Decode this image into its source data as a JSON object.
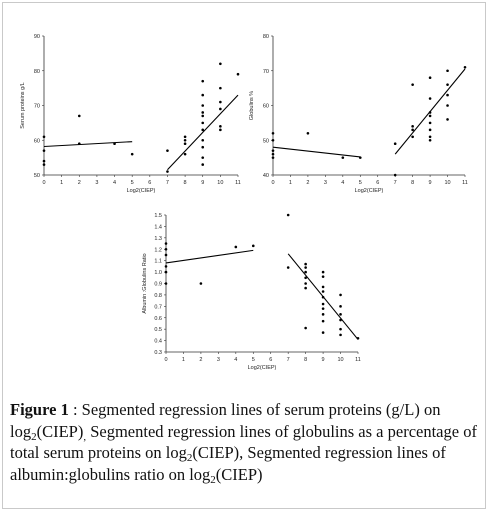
{
  "figure": {
    "label": "Figure 1",
    "caption_parts": {
      "p1": "  : Segmented regression lines of serum proteins (g/L) on log",
      "sub1": "2",
      "p2": "(CIEP)",
      "sub2": ",",
      "p3": " Segmented regression lines of globulins as a percentage of total serum proteins on log",
      "sub3": "2",
      "p4": "(CIEP), Segmented regression lines of albumin:globulins ratio on log",
      "sub4": "2",
      "p5": "(CIEP)"
    }
  },
  "chart_data": [
    {
      "type": "scatter",
      "ylabel": "Serum proteins  g/L",
      "xlabel": "Log2(CIEP)",
      "xlim": [
        0,
        11
      ],
      "ylim": [
        50,
        90
      ],
      "x_ticks": [
        "0",
        "1",
        "2",
        "3",
        "4",
        "5",
        "6",
        "7",
        "8",
        "9",
        "10",
        "11"
      ],
      "y_ticks": [
        "50",
        "60",
        "70",
        "80",
        "90"
      ],
      "points": [
        [
          0,
          61
        ],
        [
          0,
          57
        ],
        [
          0,
          54
        ],
        [
          0,
          53
        ],
        [
          2,
          67
        ],
        [
          2,
          59
        ],
        [
          4,
          59
        ],
        [
          5,
          56
        ],
        [
          7,
          51
        ],
        [
          7,
          57
        ],
        [
          8,
          60
        ],
        [
          8,
          61
        ],
        [
          8,
          59
        ],
        [
          8,
          56
        ],
        [
          9,
          77
        ],
        [
          9,
          73
        ],
        [
          9,
          70
        ],
        [
          9,
          68
        ],
        [
          9,
          67
        ],
        [
          9,
          65
        ],
        [
          9,
          63
        ],
        [
          9,
          60
        ],
        [
          9,
          58
        ],
        [
          9,
          55
        ],
        [
          9,
          53
        ],
        [
          10,
          82
        ],
        [
          10,
          75
        ],
        [
          10,
          71
        ],
        [
          10,
          69
        ],
        [
          10,
          64
        ],
        [
          10,
          63
        ],
        [
          11,
          79
        ]
      ],
      "segments": [
        [
          [
            0,
            58.2
          ],
          [
            5,
            59.6
          ]
        ],
        [
          [
            7,
            51.5
          ],
          [
            11,
            73
          ]
        ]
      ]
    },
    {
      "type": "scatter",
      "ylabel": "Globulins %",
      "xlabel": "Log2(CIEP)",
      "xlim": [
        0,
        11
      ],
      "ylim": [
        40,
        80
      ],
      "x_ticks": [
        "0",
        "1",
        "2",
        "3",
        "4",
        "5",
        "6",
        "7",
        "8",
        "9",
        "10",
        "11"
      ],
      "y_ticks": [
        "40",
        "50",
        "60",
        "70",
        "80"
      ],
      "points": [
        [
          0,
          52
        ],
        [
          0,
          50
        ],
        [
          0,
          47
        ],
        [
          0,
          46
        ],
        [
          0,
          45
        ],
        [
          2,
          52
        ],
        [
          4,
          45
        ],
        [
          5,
          45
        ],
        [
          7,
          40
        ],
        [
          7,
          49
        ],
        [
          8,
          66
        ],
        [
          8,
          54
        ],
        [
          8,
          53
        ],
        [
          8,
          51
        ],
        [
          9,
          68
        ],
        [
          9,
          62
        ],
        [
          9,
          58
        ],
        [
          9,
          57
        ],
        [
          9,
          55
        ],
        [
          9,
          53
        ],
        [
          9,
          51
        ],
        [
          9,
          50
        ],
        [
          10,
          70
        ],
        [
          10,
          66
        ],
        [
          10,
          63
        ],
        [
          10,
          60
        ],
        [
          10,
          56
        ],
        [
          11,
          71
        ]
      ],
      "segments": [
        [
          [
            0,
            48
          ],
          [
            5,
            45.2
          ]
        ],
        [
          [
            7,
            46
          ],
          [
            11,
            70.5
          ]
        ]
      ]
    },
    {
      "type": "scatter",
      "ylabel": "Albumin :Globulins Ratio",
      "xlabel": "Log2(CIEP)",
      "xlim": [
        0,
        11
      ],
      "ylim": [
        0.3,
        1.5
      ],
      "x_ticks": [
        "0",
        "1",
        "2",
        "3",
        "4",
        "5",
        "6",
        "7",
        "8",
        "9",
        "10",
        "11"
      ],
      "y_ticks": [
        "0.3",
        "0.4",
        "0.5",
        "0.6",
        "0.7",
        "0.8",
        "0.9",
        "1.0",
        "1.1",
        "1.2",
        "1.3",
        "1.4",
        "1.5"
      ],
      "points": [
        [
          0,
          1.25
        ],
        [
          0,
          1.2
        ],
        [
          0,
          1.15
        ],
        [
          0,
          1.05
        ],
        [
          0,
          1.0
        ],
        [
          0,
          0.9
        ],
        [
          2,
          0.9
        ],
        [
          4,
          1.22
        ],
        [
          5,
          1.23
        ],
        [
          7,
          1.5
        ],
        [
          7,
          1.04
        ],
        [
          8,
          1.07
        ],
        [
          8,
          1.04
        ],
        [
          8,
          1.0
        ],
        [
          8,
          0.95
        ],
        [
          8,
          0.9
        ],
        [
          8,
          0.86
        ],
        [
          8,
          0.51
        ],
        [
          9,
          1.0
        ],
        [
          9,
          0.96
        ],
        [
          9,
          0.87
        ],
        [
          9,
          0.83
        ],
        [
          9,
          0.78
        ],
        [
          9,
          0.72
        ],
        [
          9,
          0.68
        ],
        [
          9,
          0.63
        ],
        [
          9,
          0.57
        ],
        [
          9,
          0.47
        ],
        [
          10,
          0.8
        ],
        [
          10,
          0.7
        ],
        [
          10,
          0.63
        ],
        [
          10,
          0.58
        ],
        [
          10,
          0.5
        ],
        [
          10,
          0.45
        ],
        [
          11,
          0.42
        ]
      ],
      "segments": [
        [
          [
            0,
            1.08
          ],
          [
            5,
            1.19
          ]
        ],
        [
          [
            7,
            1.16
          ],
          [
            11,
            0.41
          ]
        ]
      ]
    }
  ]
}
